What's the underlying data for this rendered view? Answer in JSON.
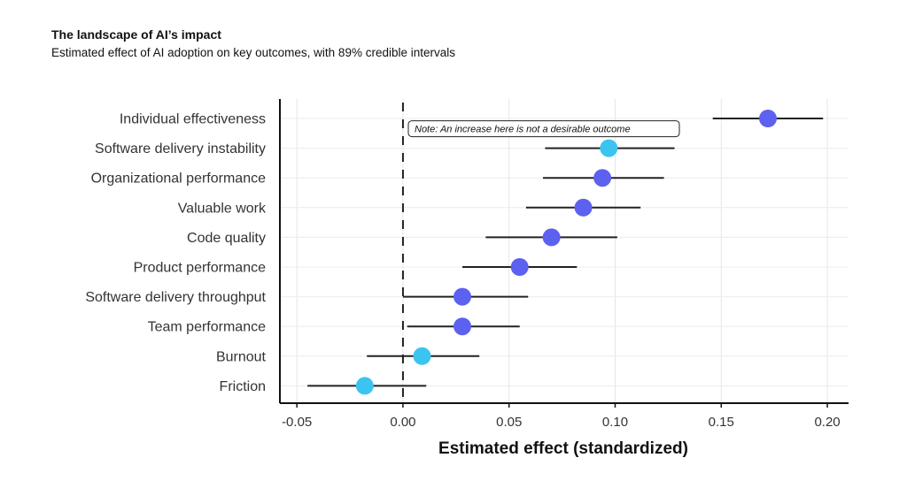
{
  "chart_data": {
    "type": "scatter",
    "title": "The landscape of AI’s impact",
    "subtitle": "Estimated effect of AI adoption on key outcomes, with 89% credible intervals",
    "xlabel": "Estimated effect (standardized)",
    "ylabel": "",
    "xlim": [
      -0.058,
      0.21
    ],
    "xticks": [
      -0.05,
      0.0,
      0.05,
      0.1,
      0.15,
      0.2
    ],
    "xtick_labels": [
      "-0.05",
      "0.00",
      "0.05",
      "0.10",
      "0.15",
      "0.20"
    ],
    "grid": true,
    "reference_line": {
      "x": 0,
      "style": "dashed"
    },
    "colors": {
      "standard": "#5c61f0",
      "undesirable_increase": "#3cc4f0",
      "interval": "#222222"
    },
    "points": [
      {
        "label": "Individual effectiveness",
        "estimate": 0.172,
        "low": 0.146,
        "high": 0.198,
        "group": "standard"
      },
      {
        "label": "Software delivery instability",
        "estimate": 0.097,
        "low": 0.067,
        "high": 0.128,
        "group": "undesirable_increase"
      },
      {
        "label": "Organizational performance",
        "estimate": 0.094,
        "low": 0.066,
        "high": 0.123,
        "group": "standard"
      },
      {
        "label": "Valuable work",
        "estimate": 0.085,
        "low": 0.058,
        "high": 0.112,
        "group": "standard"
      },
      {
        "label": "Code quality",
        "estimate": 0.07,
        "low": 0.039,
        "high": 0.101,
        "group": "standard"
      },
      {
        "label": "Product performance",
        "estimate": 0.055,
        "low": 0.028,
        "high": 0.082,
        "group": "standard"
      },
      {
        "label": "Software delivery throughput",
        "estimate": 0.028,
        "low": 0.0,
        "high": 0.059,
        "group": "standard"
      },
      {
        "label": "Team performance",
        "estimate": 0.028,
        "low": 0.002,
        "high": 0.055,
        "group": "standard"
      },
      {
        "label": "Burnout",
        "estimate": 0.009,
        "low": -0.017,
        "high": 0.036,
        "group": "undesirable_increase"
      },
      {
        "label": "Friction",
        "estimate": -0.018,
        "low": -0.045,
        "high": 0.011,
        "group": "undesirable_increase"
      }
    ],
    "annotation": {
      "text": "Note: An increase here is not a desirable outcome",
      "attached_to": "Software delivery instability"
    }
  }
}
